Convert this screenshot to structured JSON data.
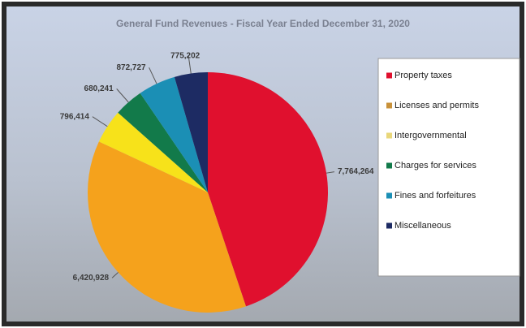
{
  "chart_data": {
    "type": "pie",
    "title": "General Fund Revenues - Fiscal Year Ended December 31, 2020",
    "categories": [
      "Property taxes",
      "Licenses and permits",
      "Intergovernmental",
      "Charges for services",
      "Fines and forfeitures",
      "Miscellaneous"
    ],
    "values": [
      7764264,
      6420928,
      796414,
      680241,
      872727,
      775202
    ],
    "value_labels": [
      "7,764,264",
      "6,420,928",
      "796,414",
      "680,241",
      "872,727",
      "775,202"
    ],
    "colors": [
      "#e0102e",
      "#f5a21c",
      "#f7e21a",
      "#127a4a",
      "#1b8fb5",
      "#1d2b63"
    ],
    "legend_colors": [
      "#e0102e",
      "#c8913a",
      "#e9d77a",
      "#127a4a",
      "#1b8fb5",
      "#1d2b63"
    ],
    "legend": "right"
  }
}
